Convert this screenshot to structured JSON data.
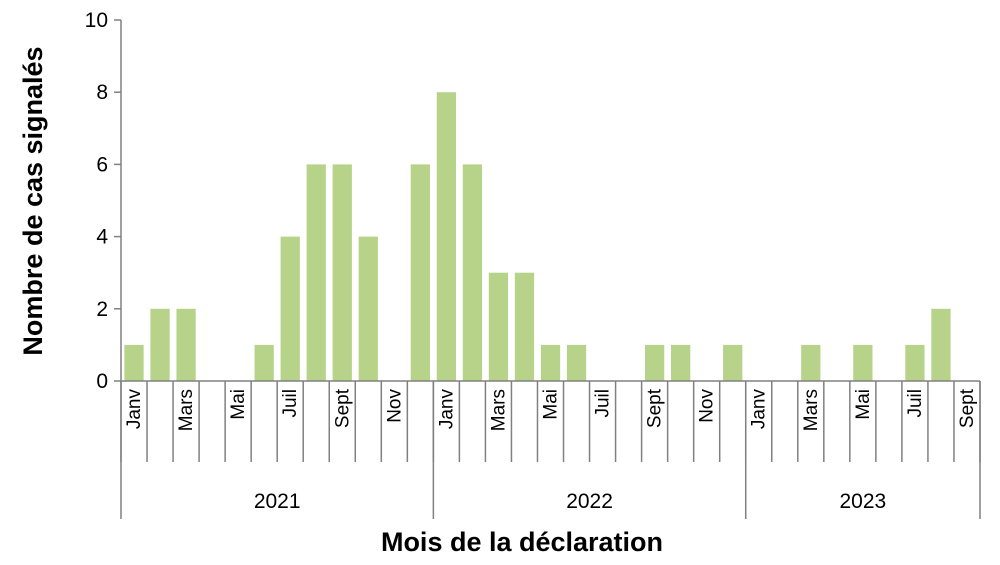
{
  "chart_data": {
    "type": "bar",
    "title": "",
    "xlabel": "Mois de la déclaration",
    "ylabel": "Nombre de cas signalés",
    "ylim": [
      0,
      10
    ],
    "yticks": [
      0,
      2,
      4,
      6,
      8,
      10
    ],
    "grid": false,
    "legend": "none",
    "bar_color": "#b7d38a",
    "groups": [
      {
        "year": "2021",
        "months": 12
      },
      {
        "year": "2022",
        "months": 12
      },
      {
        "year": "2023",
        "months": 9
      }
    ],
    "month_tick_labels": [
      "Janv",
      "",
      "Mars",
      "",
      "Mai",
      "",
      "Juil",
      "",
      "Sept",
      "",
      "Nov",
      "",
      "Janv",
      "",
      "Mars",
      "",
      "Mai",
      "",
      "Juil",
      "",
      "Sept",
      "",
      "Nov",
      "",
      "Janv",
      "",
      "Mars",
      "",
      "Mai",
      "",
      "Juil",
      "",
      "Sept"
    ],
    "values": [
      1,
      2,
      2,
      0,
      0,
      1,
      4,
      6,
      6,
      4,
      0,
      6,
      8,
      6,
      3,
      3,
      1,
      1,
      0,
      0,
      1,
      1,
      0,
      1,
      0,
      0,
      1,
      0,
      1,
      0,
      1,
      2,
      0
    ]
  }
}
